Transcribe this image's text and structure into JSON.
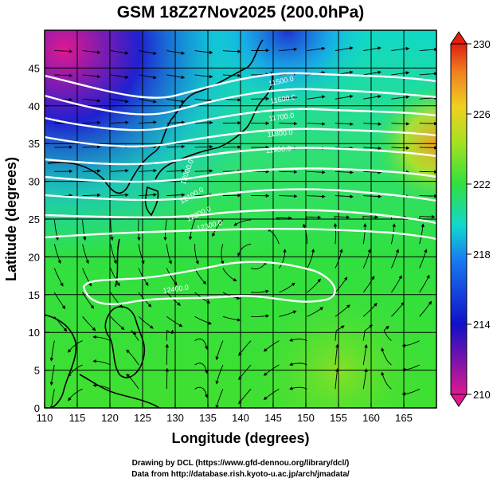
{
  "chart_data": {
    "type": "heatmap",
    "title": "GSM 18Z27Nov2025 (200.0hPa)",
    "xlabel": "Longitude (degrees)",
    "ylabel": "Latitude (degrees)",
    "xlim": [
      110,
      170
    ],
    "ylim": [
      0,
      50
    ],
    "x_ticks": [
      "110",
      "115",
      "120",
      "125",
      "130",
      "135",
      "140",
      "145",
      "150",
      "155",
      "160",
      "165"
    ],
    "y_ticks": [
      "0",
      "5",
      "10",
      "15",
      "20",
      "25",
      "30",
      "35",
      "40",
      "45"
    ],
    "grid": true,
    "colorbar": {
      "position": "right",
      "min": 210,
      "max": 230,
      "ticks": [
        "210",
        "214",
        "218",
        "222",
        "226",
        "230"
      ],
      "colors": [
        "#e01890",
        "#1010c8",
        "#1878f0",
        "#10d8d0",
        "#30e040",
        "#a8e020",
        "#f0d020",
        "#f08020",
        "#e02010"
      ]
    },
    "contour_labels": [
      "11500.0",
      "11600.0",
      "11700.0",
      "11800.0",
      "11900.0",
      "12000.0",
      "12100.0",
      "12200.0",
      "12300.0",
      "12400.0"
    ],
    "streamlines": true
  },
  "credits": {
    "line1": "Drawing by DCL (https://www.gfd-dennou.org/library/dcl/)",
    "line2": "Data from http://database.rish.kyoto-u.ac.jp/arch/jmadata/"
  }
}
